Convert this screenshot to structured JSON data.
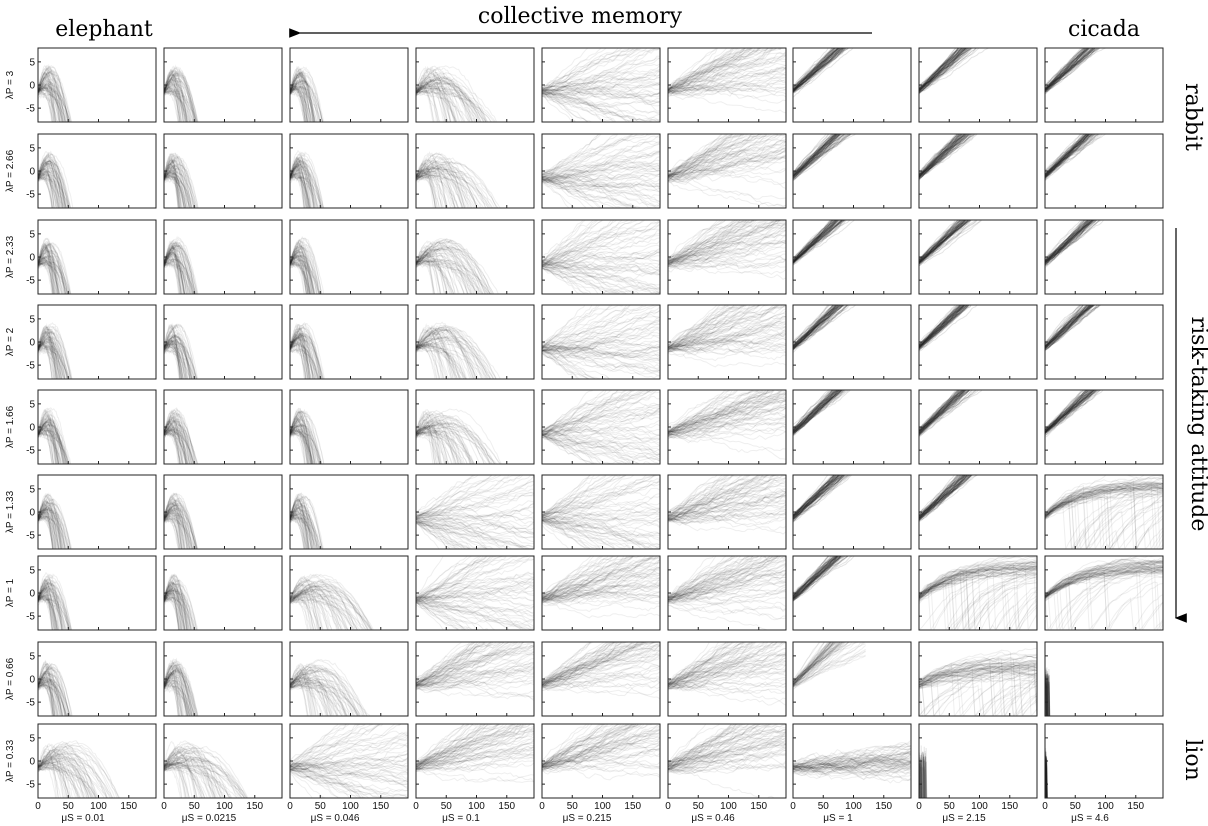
{
  "annotations": {
    "top_left": "elephant",
    "top_center": "collective memory",
    "top_right": "cicada",
    "right_top": "rabbit",
    "right_middle": "risk-taking attitude",
    "right_bottom": "lion"
  },
  "chart_data": {
    "type": "line",
    "layout": "small-multiples grid (9 rows x 9 columns)",
    "description_axes": "each panel: x from 0 to ~195, y from ~-8 to 8",
    "xlim": [
      0,
      195
    ],
    "ylim": [
      -8,
      8
    ],
    "xticks": [
      "0",
      "50",
      "100",
      "150"
    ],
    "yticks": [
      "5",
      "0",
      "-5"
    ],
    "col_labels": [
      "μS = 0.01",
      "μS = 0.0215",
      "μS = 0.046",
      "μS = 0.1",
      "μS = 0.215",
      "μS = 0.46",
      "μS = 1",
      "μS = 2.15",
      "μS = 4.6"
    ],
    "row_labels": [
      "λP = 3",
      "λP = 2.66",
      "λP = 2.33",
      "λP = 2",
      "λP = 1.66",
      "λP = 1.33",
      "λP = 1",
      "λP = 0.66",
      "λP = 0.33"
    ],
    "mu_S": [
      0.01,
      0.0215,
      0.046,
      0.1,
      0.215,
      0.46,
      1,
      2.15,
      4.6
    ],
    "lambda_P": [
      3,
      2.66,
      2.33,
      2,
      1.66,
      1.33,
      1,
      0.66,
      0.33
    ],
    "grid": false
  }
}
